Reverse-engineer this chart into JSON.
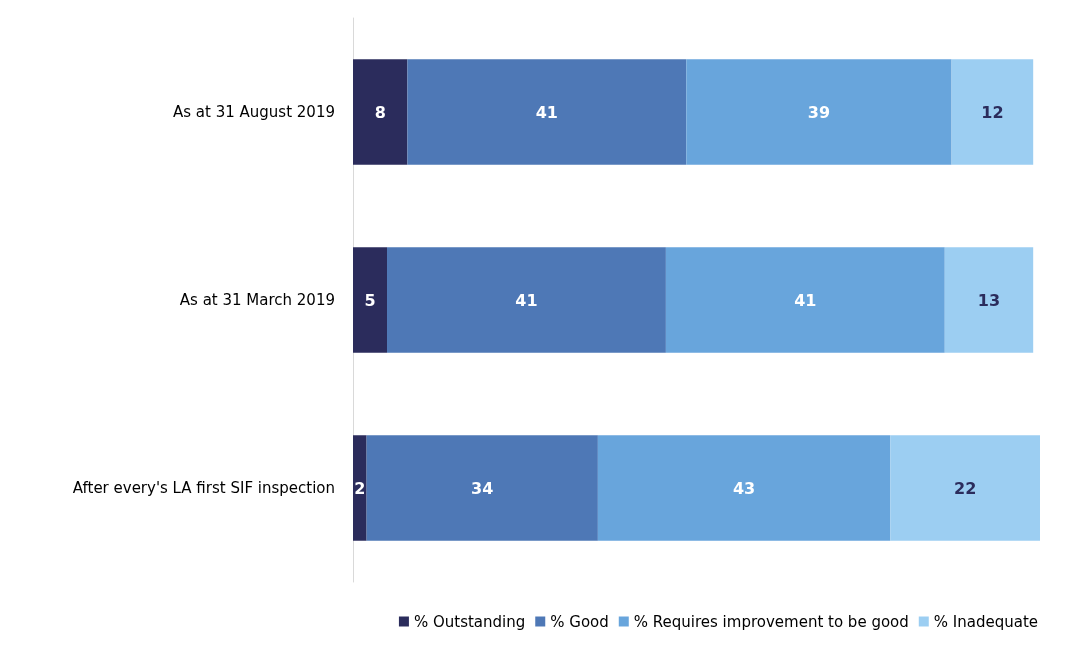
{
  "chart_data": {
    "type": "bar",
    "orientation": "horizontal",
    "stacked": true,
    "data_labels": true,
    "legend": "bottom",
    "categories": [
      "As at 31 August 2019",
      "As at 31 March 2019",
      "After every's LA first SIF inspection"
    ],
    "series": [
      {
        "name": "% Outstanding",
        "color": "#2b2c5c",
        "values": [
          8,
          5,
          2
        ]
      },
      {
        "name": "% Good",
        "color": "#4e78b6",
        "values": [
          41,
          41,
          34
        ]
      },
      {
        "name": "% Requires improvement to be good",
        "color": "#68a5dc",
        "values": [
          39,
          41,
          43
        ]
      },
      {
        "name": "% Inadequate",
        "color": "#9ccef2",
        "values": [
          12,
          13,
          22
        ]
      }
    ]
  }
}
